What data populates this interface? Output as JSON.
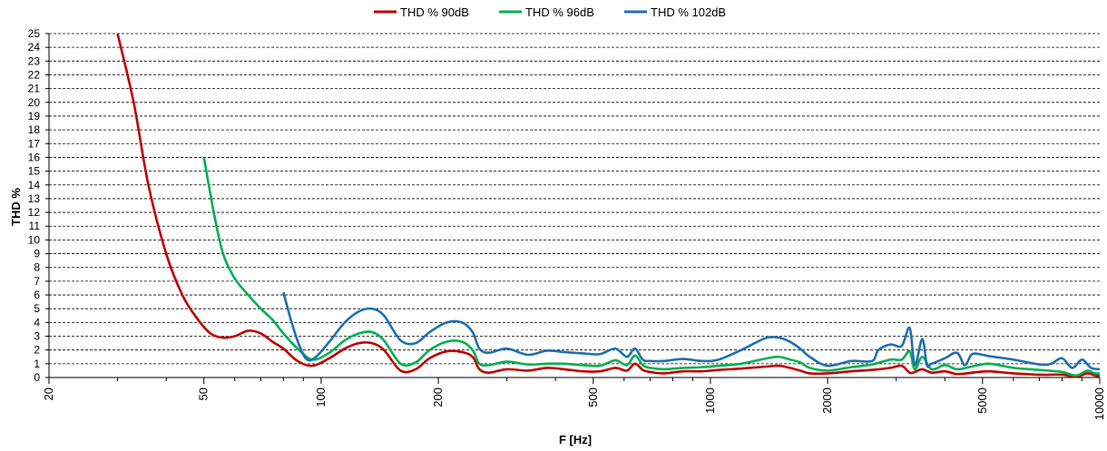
{
  "chart_data": {
    "type": "line",
    "title": "",
    "xlabel": "F [Hz]",
    "ylabel": "THD %",
    "x_scale": "log",
    "xlim": [
      20,
      10000
    ],
    "ylim": [
      0,
      25
    ],
    "x_ticks": [
      20,
      50,
      100,
      200,
      500,
      1000,
      2000,
      5000,
      10000
    ],
    "x_tick_labels": [
      "20",
      "50",
      "100",
      "200",
      "500",
      "1000",
      "2000",
      "5000",
      "10000"
    ],
    "y_ticks": [
      0,
      1,
      2,
      3,
      4,
      5,
      6,
      7,
      8,
      9,
      10,
      11,
      12,
      13,
      14,
      15,
      16,
      17,
      18,
      19,
      20,
      21,
      22,
      23,
      24,
      25
    ],
    "y_tick_labels": [
      "0",
      "1",
      "2",
      "3",
      "4",
      "5",
      "6",
      "7",
      "8",
      "9",
      "10",
      "11",
      "12",
      "13",
      "14",
      "15",
      "16",
      "17",
      "18",
      "19",
      "20",
      "21",
      "22",
      "23",
      "24",
      "25"
    ],
    "grid": "horizontal-dashed",
    "legend": "top-center",
    "series": [
      {
        "name": "THD % 90dB",
        "color": "#c00000",
        "x": [
          30,
          33,
          36,
          40,
          44,
          48,
          52,
          56,
          60,
          65,
          70,
          75,
          80,
          87,
          95,
          105,
          115,
          125,
          135,
          145,
          160,
          175,
          190,
          210,
          230,
          245,
          255,
          270,
          300,
          340,
          380,
          420,
          470,
          520,
          570,
          610,
          640,
          670,
          700,
          760,
          850,
          950,
          1050,
          1200,
          1400,
          1500,
          1600,
          1700,
          1800,
          2000,
          2300,
          2600,
          2900,
          3100,
          3250,
          3350,
          3500,
          3700,
          4000,
          4300,
          4700,
          5200,
          6000,
          7000,
          8000,
          8700,
          9300,
          9700,
          10000
        ],
        "y": [
          25,
          20,
          14,
          9,
          6,
          4.3,
          3.2,
          2.9,
          3.0,
          3.4,
          3.2,
          2.6,
          2.1,
          1.2,
          0.85,
          1.4,
          2.1,
          2.5,
          2.5,
          2.0,
          0.5,
          0.6,
          1.4,
          1.9,
          1.85,
          1.5,
          0.6,
          0.35,
          0.6,
          0.5,
          0.7,
          0.6,
          0.45,
          0.45,
          0.7,
          0.5,
          1.0,
          0.55,
          0.4,
          0.3,
          0.45,
          0.45,
          0.55,
          0.65,
          0.8,
          0.85,
          0.7,
          0.5,
          0.3,
          0.3,
          0.45,
          0.55,
          0.7,
          0.85,
          0.35,
          0.4,
          0.6,
          0.35,
          0.45,
          0.25,
          0.35,
          0.45,
          0.3,
          0.2,
          0.2,
          0.05,
          0.3,
          0.15,
          0.1
        ]
      },
      {
        "name": "THD % 96dB",
        "color": "#00b050",
        "x": [
          50,
          53,
          56,
          60,
          65,
          70,
          75,
          80,
          87,
          95,
          105,
          115,
          125,
          135,
          145,
          160,
          175,
          190,
          210,
          230,
          245,
          255,
          270,
          300,
          340,
          380,
          420,
          470,
          520,
          570,
          610,
          640,
          670,
          700,
          760,
          850,
          950,
          1050,
          1200,
          1400,
          1500,
          1600,
          1700,
          1800,
          2000,
          2300,
          2600,
          2900,
          3100,
          3250,
          3350,
          3500,
          3700,
          4000,
          4300,
          4700,
          5200,
          6000,
          7000,
          8000,
          8700,
          9300,
          9700,
          10000
        ],
        "y": [
          16,
          12,
          9,
          7.2,
          6.0,
          5.0,
          4.2,
          3.2,
          2.1,
          1.3,
          1.8,
          2.7,
          3.2,
          3.3,
          2.7,
          1.0,
          1.1,
          2.0,
          2.6,
          2.6,
          2.0,
          1.0,
          0.9,
          1.15,
          0.95,
          1.0,
          1.0,
          0.9,
          0.85,
          1.25,
          0.9,
          1.6,
          0.9,
          0.7,
          0.6,
          0.7,
          0.75,
          0.85,
          1.0,
          1.4,
          1.5,
          1.3,
          1.1,
          0.7,
          0.5,
          0.75,
          0.95,
          1.3,
          1.3,
          1.9,
          0.6,
          1.5,
          0.6,
          0.9,
          0.6,
          0.8,
          1.0,
          0.7,
          0.55,
          0.4,
          0.15,
          0.5,
          0.3,
          0.3
        ]
      },
      {
        "name": "THD % 102dB",
        "color": "#1f6fb2",
        "x": [
          80,
          84,
          88,
          92,
          97,
          105,
          115,
          125,
          135,
          145,
          160,
          175,
          190,
          210,
          230,
          245,
          255,
          270,
          300,
          340,
          380,
          420,
          470,
          520,
          570,
          610,
          640,
          670,
          700,
          760,
          850,
          950,
          1050,
          1200,
          1300,
          1400,
          1500,
          1600,
          1700,
          1800,
          2000,
          2300,
          2600,
          2700,
          2900,
          3100,
          3250,
          3350,
          3500,
          3600,
          3700,
          4000,
          4300,
          4500,
          4700,
          5000,
          5200,
          6000,
          7000,
          7500,
          8000,
          8500,
          9000,
          9500,
          10000
        ],
        "y": [
          6.2,
          4.0,
          2.3,
          1.3,
          1.5,
          2.6,
          4.0,
          4.8,
          5.0,
          4.5,
          2.7,
          2.5,
          3.3,
          4.0,
          4.0,
          3.3,
          2.1,
          1.8,
          2.1,
          1.65,
          1.95,
          1.85,
          1.75,
          1.7,
          2.1,
          1.5,
          2.1,
          1.3,
          1.2,
          1.2,
          1.35,
          1.2,
          1.3,
          2.0,
          2.5,
          2.9,
          2.9,
          2.6,
          2.1,
          1.5,
          0.85,
          1.2,
          1.2,
          2.0,
          2.4,
          2.3,
          3.6,
          0.9,
          2.8,
          0.9,
          1.0,
          1.4,
          1.8,
          0.9,
          1.7,
          1.65,
          1.55,
          1.3,
          0.95,
          1.0,
          1.4,
          0.7,
          1.3,
          0.7,
          0.6
        ]
      }
    ]
  }
}
